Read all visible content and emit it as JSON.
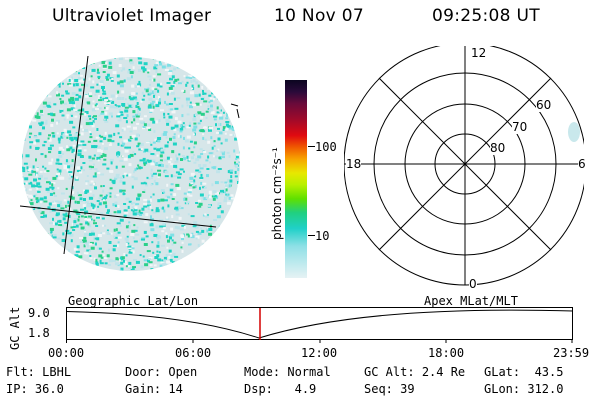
{
  "header": {
    "title": "Ultraviolet Imager",
    "date": "10 Nov 07",
    "time": "09:25:08 UT"
  },
  "colorbar": {
    "unit_label": "photon cm⁻²s⁻¹",
    "ticks": [
      "100",
      "10"
    ]
  },
  "polar_plot": {
    "mlt_labels": [
      "12",
      "18",
      "6",
      "0"
    ],
    "lat_labels": [
      "60",
      "70",
      "80"
    ]
  },
  "timeline": {
    "left_label": "Geographic Lat/Lon",
    "right_label": "Apex MLat/MLT",
    "axis_title": "GC Alt",
    "y_top": "9.0",
    "y_bottom": "1.8",
    "time_ticks": [
      "00:00",
      "06:00",
      "12:00",
      "18:00",
      "23:59"
    ],
    "marker_color": "#d40000"
  },
  "status": {
    "row1": [
      {
        "label": "Flt:",
        "value": "LBHL"
      },
      {
        "label": "Door:",
        "value": "Open"
      },
      {
        "label": "Mode:",
        "value": "Normal"
      },
      {
        "label": "GC Alt:",
        "value": "2.4 Re"
      },
      {
        "label": "GLat:",
        "value": "43.5"
      }
    ],
    "row2": [
      {
        "label": "IP:",
        "value": "36.0"
      },
      {
        "label": "Gain:",
        "value": "14"
      },
      {
        "label": "Dsp:",
        "value": "4.9"
      },
      {
        "label": "Seq:",
        "value": "39"
      },
      {
        "label": "GLon:",
        "value": "312.0"
      }
    ]
  }
}
